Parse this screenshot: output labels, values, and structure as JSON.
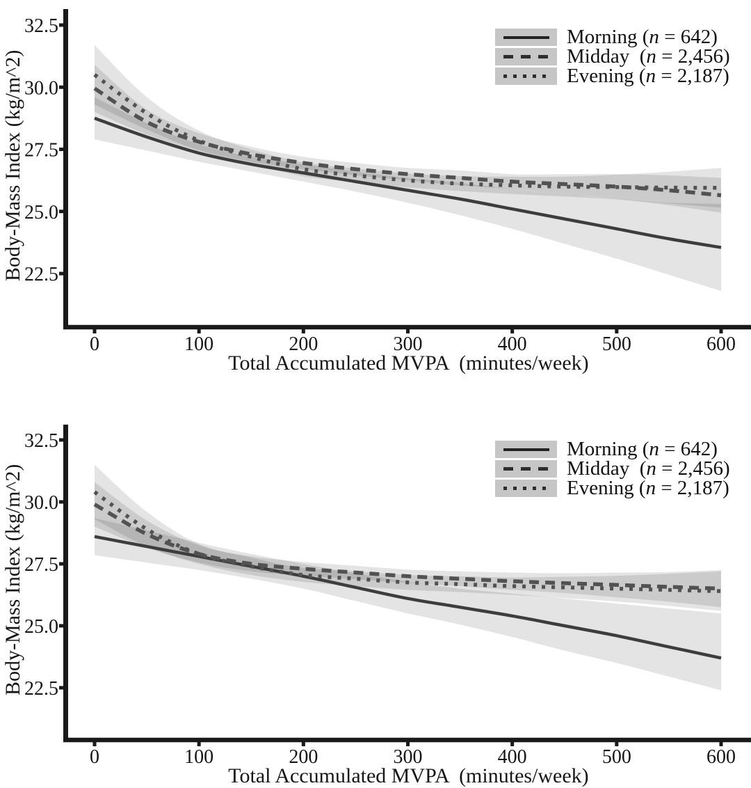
{
  "colors": {
    "line_solid": "#3d3d3d",
    "line_dashed": "#525252",
    "line_dotted": "#525252",
    "band": "rgba(0,0,0,0.105)",
    "axis": "#1a1a1a",
    "legend_key_bg": "#c6c6c6",
    "text": "#161616"
  },
  "chart_data": [
    {
      "type": "line",
      "panel": "top",
      "xlabel": "Total Accumulated MVPA  (minutes/week)",
      "ylabel": "Body-Mass Index (kg/m^2)",
      "xlim": [
        0,
        600
      ],
      "ylim": [
        20.4,
        33.1
      ],
      "grid": false,
      "legend_position": "top-right",
      "x_ticks": [
        0,
        100,
        200,
        300,
        400,
        500,
        600
      ],
      "y_ticks": [
        "32.5",
        "30.0",
        "27.5",
        "25.0",
        "22.5"
      ],
      "x": [
        0,
        50,
        100,
        150,
        200,
        250,
        300,
        350,
        400,
        450,
        500,
        550,
        600
      ],
      "series": [
        {
          "name": "Morning",
          "n": "642",
          "line_style": "solid",
          "values": [
            28.75,
            28.0,
            27.35,
            26.9,
            26.55,
            26.2,
            25.85,
            25.5,
            25.1,
            24.7,
            24.3,
            23.9,
            23.55
          ],
          "lower": [
            27.9,
            27.45,
            27.0,
            26.6,
            26.2,
            25.8,
            25.35,
            24.85,
            24.3,
            23.7,
            23.1,
            22.45,
            21.8
          ],
          "upper": [
            29.6,
            28.55,
            27.7,
            27.2,
            26.9,
            26.6,
            26.35,
            26.15,
            25.9,
            25.7,
            25.5,
            25.35,
            25.3
          ]
        },
        {
          "name": "Midday",
          "n": "2,456",
          "line_style": "dashed",
          "values": [
            29.95,
            28.6,
            27.8,
            27.3,
            26.95,
            26.7,
            26.5,
            26.35,
            26.2,
            26.1,
            26.0,
            25.85,
            25.65
          ],
          "lower": [
            29.0,
            28.1,
            27.45,
            27.0,
            26.7,
            26.45,
            26.25,
            26.05,
            25.9,
            25.7,
            25.5,
            25.25,
            24.95
          ],
          "upper": [
            30.9,
            29.1,
            28.15,
            27.6,
            27.2,
            26.95,
            26.75,
            26.65,
            26.5,
            26.5,
            26.5,
            26.45,
            26.35
          ]
        },
        {
          "name": "Evening",
          "n": "2,187",
          "line_style": "dotted",
          "values": [
            30.5,
            28.95,
            27.85,
            27.2,
            26.7,
            26.45,
            26.25,
            26.12,
            26.05,
            26.0,
            25.98,
            25.96,
            25.95
          ],
          "lower": [
            29.3,
            28.3,
            27.45,
            26.9,
            26.42,
            26.17,
            25.97,
            25.82,
            25.7,
            25.6,
            25.48,
            25.32,
            25.15
          ],
          "upper": [
            31.7,
            29.6,
            28.25,
            27.5,
            26.98,
            26.73,
            26.53,
            26.42,
            26.4,
            26.4,
            26.48,
            26.6,
            26.75
          ]
        }
      ],
      "legend": [
        {
          "prefix": "Morning (",
          "n_symbol": "n",
          "suffix": " = 642)"
        },
        {
          "prefix": "Midday  (",
          "n_symbol": "n",
          "suffix": " = 2,456)"
        },
        {
          "prefix": "Evening (",
          "n_symbol": "n",
          "suffix": " = 2,187)"
        }
      ]
    },
    {
      "type": "line",
      "panel": "bottom",
      "xlabel": "Total Accumulated MVPA  (minutes/week)",
      "ylabel": "Body-Mass Index (kg/m^2)",
      "xlim": [
        0,
        600
      ],
      "ylim": [
        20.4,
        33.1
      ],
      "grid": false,
      "legend_position": "top-right",
      "x_ticks": [
        0,
        100,
        200,
        300,
        400,
        500,
        600
      ],
      "y_ticks": [
        "32.5",
        "30.0",
        "27.5",
        "25.0",
        "22.5"
      ],
      "x": [
        0,
        50,
        100,
        150,
        200,
        250,
        300,
        350,
        400,
        450,
        500,
        550,
        600
      ],
      "series": [
        {
          "name": "Morning",
          "n": "642",
          "line_style": "solid",
          "values": [
            28.6,
            28.2,
            27.8,
            27.4,
            27.0,
            26.55,
            26.1,
            25.75,
            25.4,
            25.0,
            24.6,
            24.15,
            23.7
          ],
          "lower": [
            27.85,
            27.55,
            27.25,
            26.9,
            26.5,
            26.0,
            25.5,
            25.05,
            24.55,
            24.0,
            23.5,
            22.95,
            22.4
          ],
          "upper": [
            29.35,
            28.85,
            28.35,
            27.9,
            27.5,
            27.12,
            26.78,
            26.5,
            26.3,
            26.1,
            25.9,
            25.7,
            25.5
          ]
        },
        {
          "name": "Midday",
          "n": "2,456",
          "line_style": "dashed",
          "values": [
            29.9,
            28.7,
            27.9,
            27.5,
            27.3,
            27.15,
            27.0,
            26.9,
            26.8,
            26.72,
            26.65,
            26.57,
            26.5
          ],
          "lower": [
            29.0,
            28.15,
            27.55,
            27.2,
            27.02,
            26.88,
            26.73,
            26.6,
            26.45,
            26.32,
            26.15,
            25.97,
            25.75
          ],
          "upper": [
            30.8,
            29.25,
            28.25,
            27.8,
            27.58,
            27.42,
            27.27,
            27.2,
            27.15,
            27.12,
            27.15,
            27.17,
            27.25
          ]
        },
        {
          "name": "Evening",
          "n": "2,187",
          "line_style": "dotted",
          "values": [
            30.4,
            28.9,
            27.9,
            27.4,
            27.05,
            26.9,
            26.75,
            26.68,
            26.6,
            26.55,
            26.5,
            26.45,
            26.4
          ],
          "lower": [
            29.3,
            28.2,
            27.5,
            27.05,
            26.77,
            26.6,
            26.45,
            26.36,
            26.25,
            26.12,
            25.98,
            25.8,
            25.6
          ],
          "upper": [
            31.5,
            29.6,
            28.3,
            27.75,
            27.33,
            27.2,
            27.05,
            27.0,
            26.95,
            26.98,
            27.02,
            27.1,
            27.2
          ]
        }
      ],
      "legend": [
        {
          "prefix": "Morning (",
          "n_symbol": "n",
          "suffix": " = 642)"
        },
        {
          "prefix": "Midday  (",
          "n_symbol": "n",
          "suffix": " = 2,456)"
        },
        {
          "prefix": "Evening (",
          "n_symbol": "n",
          "suffix": " = 2,187)"
        }
      ]
    }
  ]
}
